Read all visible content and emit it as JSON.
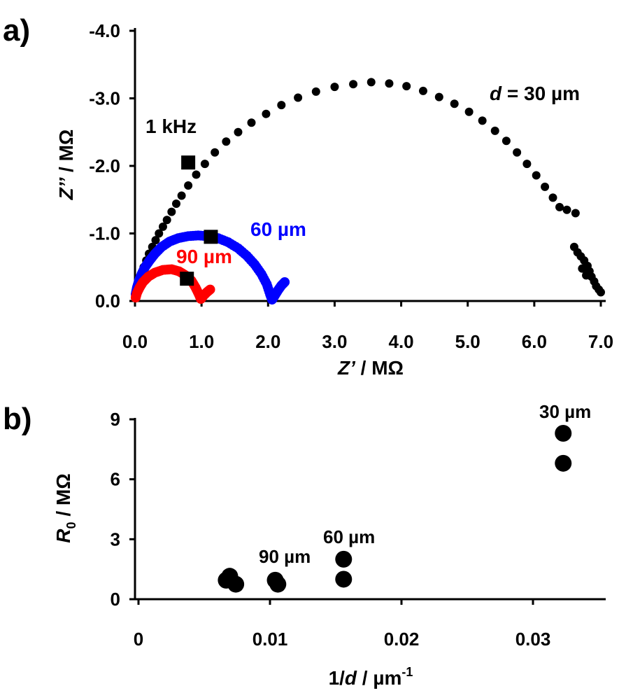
{
  "chart_data": [
    {
      "panel_label": "a)",
      "type": "scatter",
      "xlabel_italic": "Z’",
      "xlabel_rest": " / MΩ",
      "ylabel_italic": "Z’’",
      "ylabel_rest": " / MΩ",
      "xlim": [
        0,
        7
      ],
      "ylim": [
        0,
        -4
      ],
      "xticks": [
        "0.0",
        "1.0",
        "2.0",
        "3.0",
        "4.0",
        "5.0",
        "6.0",
        "7.0"
      ],
      "yticks": [
        "0.0",
        "-1.0",
        "-2.0",
        "-3.0",
        "-4.0"
      ],
      "series": [
        {
          "name": "30 µm",
          "color": "#000000",
          "points": [
            [
              0.02,
              -0.05
            ],
            [
              0.03,
              -0.1
            ],
            [
              0.05,
              -0.2
            ],
            [
              0.07,
              -0.3
            ],
            [
              0.1,
              -0.4
            ],
            [
              0.13,
              -0.5
            ],
            [
              0.17,
              -0.6
            ],
            [
              0.21,
              -0.7
            ],
            [
              0.26,
              -0.8
            ],
            [
              0.31,
              -0.9
            ],
            [
              0.36,
              -1.0
            ],
            [
              0.42,
              -1.1
            ],
            [
              0.48,
              -1.2
            ],
            [
              0.55,
              -1.32
            ],
            [
              0.62,
              -1.44
            ],
            [
              0.7,
              -1.56
            ],
            [
              0.8,
              -1.71
            ],
            [
              0.92,
              -1.87
            ],
            [
              1.05,
              -2.03
            ],
            [
              1.2,
              -2.2
            ],
            [
              1.37,
              -2.36
            ],
            [
              1.55,
              -2.5
            ],
            [
              1.75,
              -2.64
            ],
            [
              1.97,
              -2.77
            ],
            [
              2.2,
              -2.9
            ],
            [
              2.45,
              -3.01
            ],
            [
              2.72,
              -3.1
            ],
            [
              3.0,
              -3.17
            ],
            [
              3.28,
              -3.21
            ],
            [
              3.55,
              -3.24
            ],
            [
              3.82,
              -3.22
            ],
            [
              4.08,
              -3.18
            ],
            [
              4.33,
              -3.11
            ],
            [
              4.57,
              -3.02
            ],
            [
              4.8,
              -2.92
            ],
            [
              5.02,
              -2.8
            ],
            [
              5.22,
              -2.67
            ],
            [
              5.41,
              -2.52
            ],
            [
              5.58,
              -2.37
            ],
            [
              5.74,
              -2.2
            ],
            [
              5.89,
              -2.03
            ],
            [
              6.03,
              -1.86
            ],
            [
              6.16,
              -1.69
            ],
            [
              6.28,
              -1.53
            ],
            [
              6.38,
              -1.39
            ],
            [
              6.49,
              -1.35
            ],
            [
              6.62,
              -1.3
            ],
            [
              6.6,
              -0.8
            ],
            [
              6.65,
              -0.72
            ],
            [
              6.7,
              -0.66
            ],
            [
              6.75,
              -0.6
            ],
            [
              6.8,
              -0.52
            ],
            [
              6.83,
              -0.44
            ],
            [
              6.86,
              -0.36
            ],
            [
              6.9,
              -0.29
            ],
            [
              6.93,
              -0.22
            ],
            [
              6.97,
              -0.17
            ],
            [
              7.0,
              -0.13
            ],
            [
              6.72,
              -0.48
            ],
            [
              6.78,
              -0.38
            ]
          ]
        },
        {
          "name": "60 µm",
          "color": "#0000ff",
          "points": [
            [
              0.01,
              -0.1
            ],
            [
              0.03,
              -0.2
            ],
            [
              0.06,
              -0.3
            ],
            [
              0.1,
              -0.4
            ],
            [
              0.15,
              -0.5
            ],
            [
              0.22,
              -0.6
            ],
            [
              0.3,
              -0.7
            ],
            [
              0.4,
              -0.8
            ],
            [
              0.52,
              -0.88
            ],
            [
              0.65,
              -0.93
            ],
            [
              0.8,
              -0.96
            ],
            [
              0.95,
              -0.97
            ],
            [
              1.1,
              -0.96
            ],
            [
              1.25,
              -0.93
            ],
            [
              1.4,
              -0.87
            ],
            [
              1.55,
              -0.78
            ],
            [
              1.68,
              -0.67
            ],
            [
              1.8,
              -0.54
            ],
            [
              1.9,
              -0.4
            ],
            [
              1.98,
              -0.25
            ],
            [
              2.03,
              -0.1
            ],
            [
              2.06,
              -0.02
            ],
            [
              2.1,
              -0.08
            ],
            [
              2.15,
              -0.16
            ],
            [
              2.2,
              -0.23
            ],
            [
              2.25,
              -0.28
            ]
          ]
        },
        {
          "name": "90 µm",
          "color": "#ff0000",
          "points": [
            [
              0.01,
              -0.05
            ],
            [
              0.03,
              -0.12
            ],
            [
              0.07,
              -0.2
            ],
            [
              0.12,
              -0.28
            ],
            [
              0.2,
              -0.36
            ],
            [
              0.3,
              -0.42
            ],
            [
              0.42,
              -0.46
            ],
            [
              0.55,
              -0.47
            ],
            [
              0.66,
              -0.44
            ],
            [
              0.76,
              -0.38
            ],
            [
              0.85,
              -0.3
            ],
            [
              0.91,
              -0.2
            ],
            [
              0.96,
              -0.1
            ],
            [
              0.99,
              -0.03
            ],
            [
              1.03,
              -0.08
            ],
            [
              1.08,
              -0.13
            ],
            [
              1.13,
              -0.17
            ]
          ]
        }
      ],
      "markers_1kHz": [
        [
          0.8,
          -2.05
        ],
        [
          1.14,
          -0.95
        ],
        [
          0.78,
          -0.33
        ]
      ],
      "annotations": {
        "thirty_d": "d",
        "thirty_rest": " = 30 µm",
        "sixty": "60 µm",
        "ninety": "90 µm",
        "khz": "1 kHz"
      }
    },
    {
      "panel_label": "b)",
      "type": "scatter",
      "xlabel_pre": "1/",
      "xlabel_italic": "d",
      "xlabel_rest": " / µm",
      "xlabel_sup": "-1",
      "ylabel_italic": "R",
      "ylabel_sub": "0",
      "ylabel_rest": " / MΩ",
      "xlim": [
        0,
        0.035
      ],
      "ylim": [
        0,
        9
      ],
      "xticks": [
        "0",
        "0.01",
        "0.02",
        "0.03"
      ],
      "yticks": [
        "0",
        "3",
        "6",
        "9"
      ],
      "points": [
        [
          0.00667,
          0.95
        ],
        [
          0.00694,
          1.15
        ],
        [
          0.0074,
          0.75
        ],
        [
          0.0104,
          0.95
        ],
        [
          0.0106,
          0.75
        ],
        [
          0.0156,
          2.0
        ],
        [
          0.0156,
          1.0
        ],
        [
          0.0323,
          8.3
        ],
        [
          0.0323,
          6.8
        ]
      ],
      "annotations": {
        "thirty": "30 µm",
        "sixty": "60 µm",
        "ninety": "90 µm"
      }
    }
  ]
}
